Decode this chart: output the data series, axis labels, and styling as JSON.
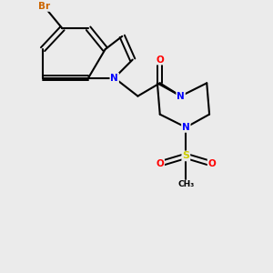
{
  "background_color": "#ebebeb",
  "bond_color": "#000000",
  "atom_colors": {
    "Br": "#cc6600",
    "N": "#0000ff",
    "O": "#ff0000",
    "S": "#cccc00",
    "C": "#000000"
  },
  "figsize": [
    3.0,
    3.0
  ],
  "dpi": 100
}
